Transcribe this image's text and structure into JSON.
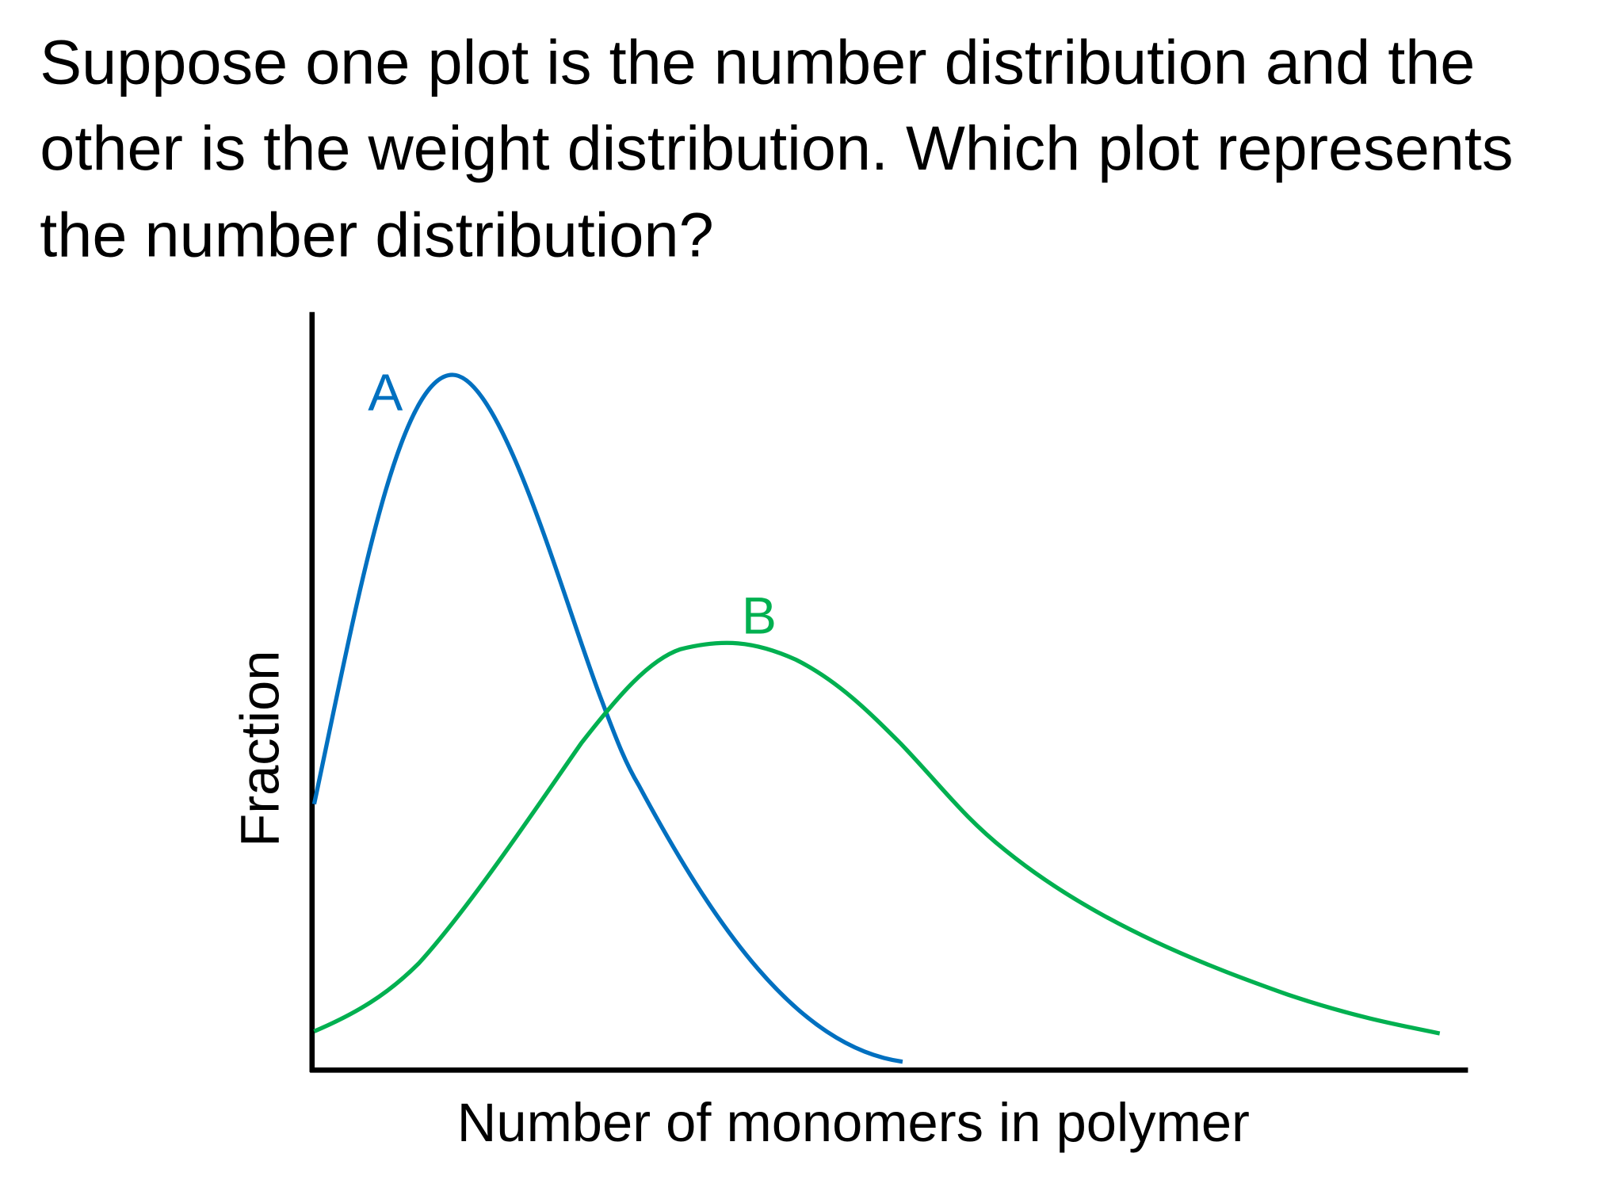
{
  "question": {
    "lines": [
      "Suppose one plot is the number distribution and the",
      "other is the weight distribution. Which plot represents",
      "the number distribution?"
    ]
  },
  "plot": {
    "y_axis_label": "Fraction",
    "x_axis_label": "Number of monomers in polymer",
    "curves": [
      {
        "label": "A"
      },
      {
        "label": "B"
      }
    ]
  }
}
